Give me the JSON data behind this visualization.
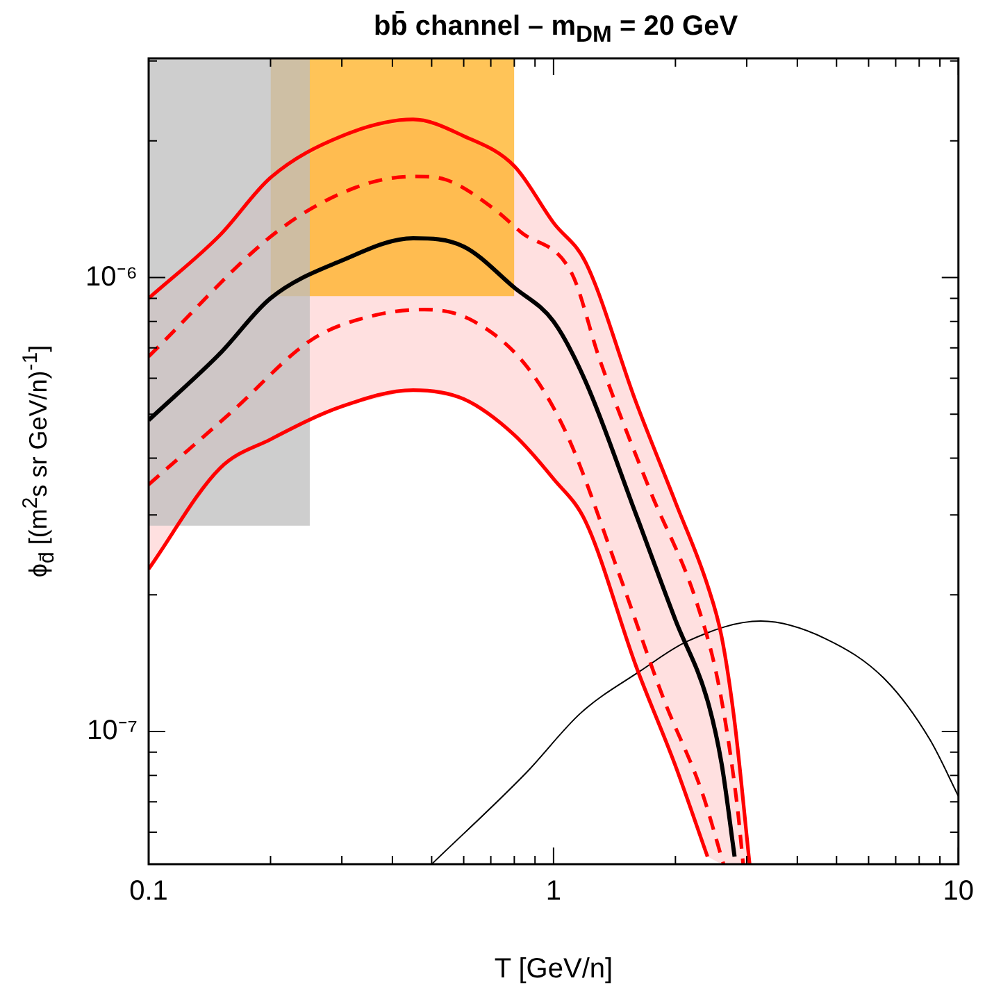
{
  "chart_data": {
    "type": "line",
    "title": "bb̄ channel – m$_{DM}$ = 20 GeV",
    "xlabel": "T [GeV/n]",
    "ylabel": "ϕ$_{d̄}$ [(m$^{2}$s sr GeV/n)$^{-1}$]",
    "log": "xy",
    "xlim": [
      0.1,
      10
    ],
    "ylim": [
      5.1e-08,
      3.04e-06
    ],
    "xticks": [
      {
        "value": 0.1,
        "label": "0.1"
      },
      {
        "value": 0.2,
        "label": null
      },
      {
        "value": 0.3,
        "label": null
      },
      {
        "value": 0.4,
        "label": null
      },
      {
        "value": 0.5,
        "label": null
      },
      {
        "value": 0.6,
        "label": null
      },
      {
        "value": 0.7,
        "label": null
      },
      {
        "value": 0.8,
        "label": null
      },
      {
        "value": 0.9,
        "label": null
      },
      {
        "value": 1,
        "label": "1"
      },
      {
        "value": 2,
        "label": null
      },
      {
        "value": 3,
        "label": null
      },
      {
        "value": 4,
        "label": null
      },
      {
        "value": 5,
        "label": null
      },
      {
        "value": 6,
        "label": null
      },
      {
        "value": 7,
        "label": null
      },
      {
        "value": 8,
        "label": null
      },
      {
        "value": 9,
        "label": null
      },
      {
        "value": 10,
        "label": "10"
      }
    ],
    "yticks": [
      {
        "value": 6e-08,
        "label": null
      },
      {
        "value": 7e-08,
        "label": null
      },
      {
        "value": 8e-08,
        "label": null
      },
      {
        "value": 9e-08,
        "label": null
      },
      {
        "value": 1e-07,
        "label": "10⁻⁷"
      },
      {
        "value": 2e-07,
        "label": null
      },
      {
        "value": 3e-07,
        "label": null
      },
      {
        "value": 4e-07,
        "label": null
      },
      {
        "value": 5e-07,
        "label": null
      },
      {
        "value": 6e-07,
        "label": null
      },
      {
        "value": 7e-07,
        "label": null
      },
      {
        "value": 8e-07,
        "label": null
      },
      {
        "value": 9e-07,
        "label": null
      },
      {
        "value": 1e-06,
        "label": "10⁻⁶"
      },
      {
        "value": 2e-06,
        "label": null
      },
      {
        "value": 3e-06,
        "label": null
      }
    ],
    "series": [
      {
        "type": "line",
        "color": "#ff0000",
        "x": [
          0.1,
          0.15,
          0.2,
          0.3,
          0.45,
          0.6,
          0.8,
          1,
          1.2,
          1.6,
          2,
          2.4,
          2.6,
          2.8,
          3.05
        ],
        "values": [
          9e-07,
          1.24e-06,
          1.66e-06,
          2.05e-06,
          2.23e-06,
          2.05e-06,
          1.76e-06,
          1.32e-06,
          1.08e-06,
          5.3e-07,
          3.2e-07,
          2.1e-07,
          1.62e-07,
          1.05e-07,
          5.1e-08
        ]
      },
      {
        "type": "line",
        "color": "#ff0000",
        "x": [
          0.1,
          0.15,
          0.2,
          0.3,
          0.45,
          0.6,
          0.8,
          1,
          1.2,
          1.6,
          2,
          2.4
        ],
        "values": [
          2.28e-07,
          3.8e-07,
          4.4e-07,
          5.2e-07,
          5.65e-07,
          5.4e-07,
          4.5e-07,
          3.6e-07,
          2.9e-07,
          1.39e-07,
          8.4e-08,
          5.3e-08
        ]
      },
      {
        "type": "area",
        "color": "#bdbdbd",
        "x": [
          0.1,
          0.25
        ],
        "values": [
          null,
          null
        ],
        "lower": [
          2.84e-07,
          2.84e-07
        ],
        "upper": [
          3.04e-06,
          3.04e-06
        ]
      },
      {
        "type": "area",
        "color": "#ffb020",
        "x": [
          0.2,
          0.8
        ],
        "values": [
          null,
          null
        ],
        "lower": [
          9.1e-07,
          9.1e-07
        ],
        "upper": [
          3.04e-06,
          3.04e-06
        ]
      },
      {
        "type": "line",
        "color": "#000000",
        "x": [
          0.1,
          0.15,
          0.2,
          0.3,
          0.45,
          0.6,
          0.8,
          1,
          1.2,
          1.6,
          2,
          2.4,
          2.6,
          2.8,
          3.05
        ],
        "values": [
          4.85e-07,
          6.8e-07,
          9e-07,
          1.09e-06,
          1.22e-06,
          1.17e-06,
          9.5e-07,
          8e-07,
          5.9e-07,
          3e-07,
          1.76e-07,
          1.17e-07,
          8.5e-08,
          5.3e-08,
          null
        ],
        "lower": [
          2.28e-07,
          3.8e-07,
          4.4e-07,
          5.2e-07,
          5.65e-07,
          5.4e-07,
          4.5e-07,
          3.6e-07,
          2.9e-07,
          1.39e-07,
          8.4e-08,
          5.3e-08,
          5.1e-08,
          5.1e-08,
          5.1e-08
        ],
        "upper": [
          9e-07,
          1.24e-06,
          1.66e-06,
          2.05e-06,
          2.23e-06,
          2.05e-06,
          1.76e-06,
          1.32e-06,
          1.08e-06,
          5.3e-07,
          3.2e-07,
          2.1e-07,
          1.62e-07,
          1.05e-07,
          5.1e-08
        ]
      },
      {
        "type": "line",
        "color": "#ff0000",
        "line_style": "dashed",
        "x": [
          0.1,
          0.207,
          0.325,
          0.456,
          0.545,
          0.71,
          0.83,
          1.11,
          1.3,
          1.73,
          2.25,
          2.57,
          2.84,
          2.94
        ],
        "values": [
          6.7e-07,
          1.26e-06,
          1.58e-06,
          1.67e-06,
          1.64e-06,
          1.42e-06,
          1.26e-06,
          1.02e-06,
          6.6e-07,
          3.4e-07,
          1.94e-07,
          1.24e-07,
          6.9e-08,
          5.1e-08
        ]
      },
      {
        "type": "line",
        "color": "#ff0000",
        "line_style": "dashed",
        "x": [
          0.1,
          0.16,
          0.253,
          0.35,
          0.48,
          0.62,
          0.855,
          1.08,
          1.45,
          1.87,
          2.32,
          2.63
        ],
        "values": [
          3.5e-07,
          5.05e-07,
          7.3e-07,
          8.2e-07,
          8.5e-07,
          8.1e-07,
          6.4e-07,
          4.5e-07,
          2.23e-07,
          1.18e-07,
          7.4e-08,
          5.1e-08
        ]
      },
      {
        "type": "line",
        "color": "#000000",
        "line_style": "solid",
        "x": [
          0.5,
          0.855,
          1.17,
          1.64,
          2.14,
          3.25,
          4.7,
          6.6,
          8.5,
          10
        ],
        "values": [
          5.1e-08,
          8.1e-08,
          1.1e-07,
          1.36e-07,
          1.58e-07,
          1.75e-07,
          1.6e-07,
          1.3e-07,
          9.6e-08,
          7.2e-08
        ]
      }
    ]
  }
}
